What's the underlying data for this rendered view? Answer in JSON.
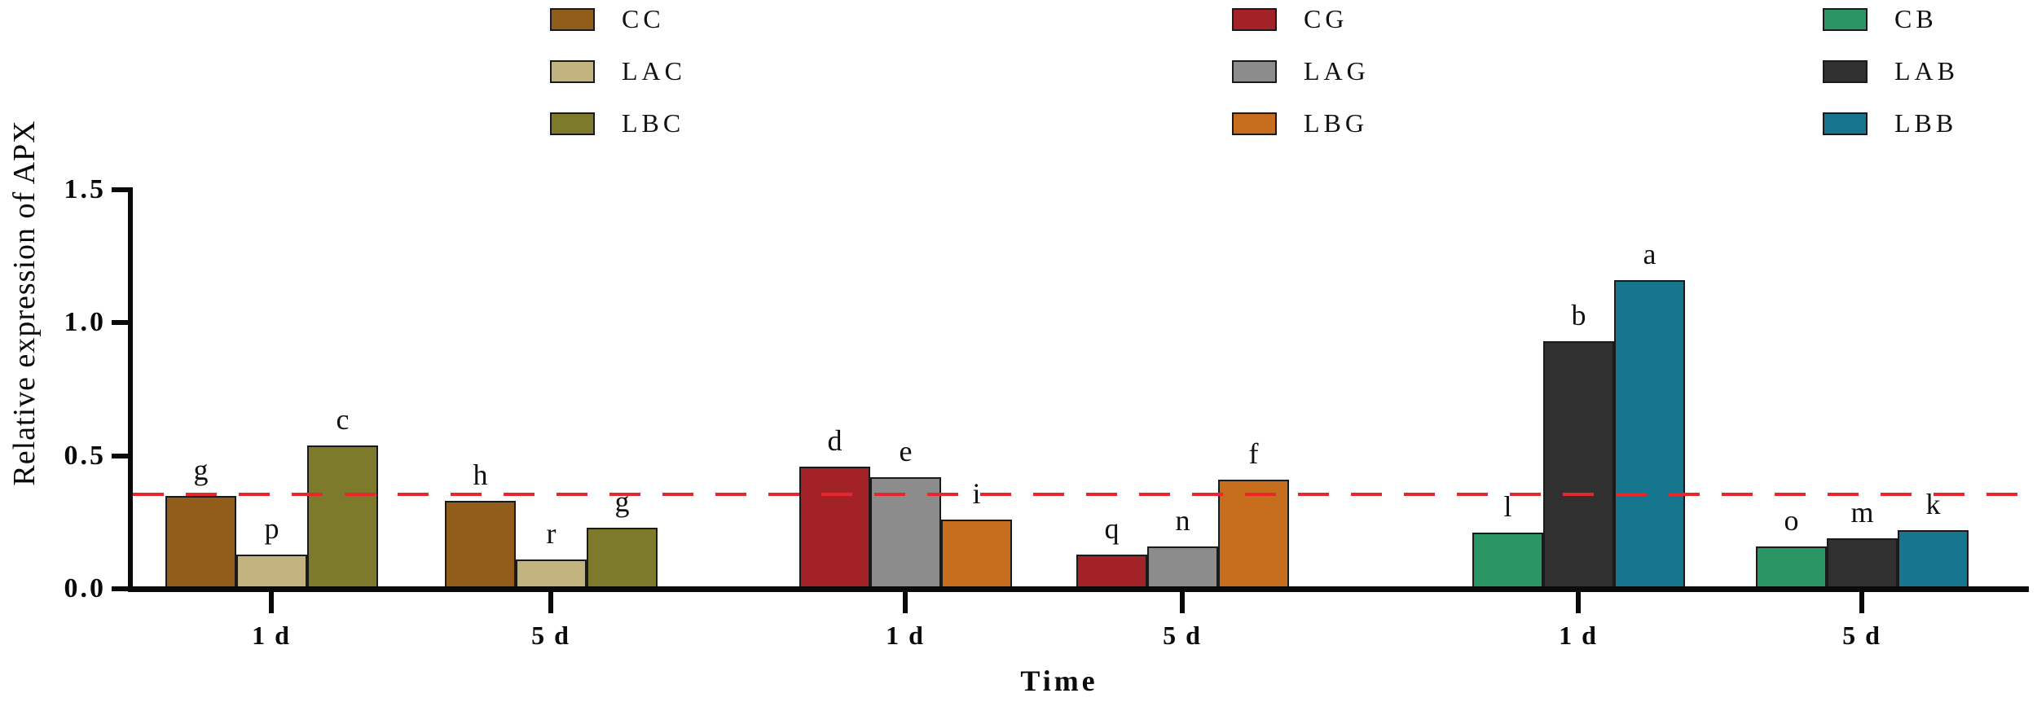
{
  "chart_data": {
    "type": "bar",
    "title": "",
    "ylabel": "Relative expression of APX",
    "xlabel": "Time",
    "ylim": [
      0,
      1.5
    ],
    "ytick_values": [
      0,
      0.5,
      1.0,
      1.5
    ],
    "ytick_labels": [
      "0.0",
      "0.5",
      "1.0",
      "1.5"
    ],
    "grid": "off",
    "legend_position": "top",
    "reference_line": {
      "value": 0.355,
      "color": "#e8262c",
      "style": "dashed"
    },
    "series": [
      {
        "name": "CC",
        "color": "#925c1a"
      },
      {
        "name": "LAC",
        "color": "#c3b37e"
      },
      {
        "name": "LBC",
        "color": "#7d7a2c"
      },
      {
        "name": "CG",
        "color": "#a22228"
      },
      {
        "name": "LAG",
        "color": "#8c8c8c"
      },
      {
        "name": "LBG",
        "color": "#c66e1e"
      },
      {
        "name": "CB",
        "color": "#2a9666"
      },
      {
        "name": "LAB",
        "color": "#303030"
      },
      {
        "name": "LBB",
        "color": "#17768f"
      }
    ],
    "legend_columns": [
      [
        "CC",
        "LAC",
        "LBC"
      ],
      [
        "CG",
        "LAG",
        "LBG"
      ],
      [
        "CB",
        "LAB",
        "LBB"
      ]
    ],
    "clusters": [
      {
        "time": "1 d",
        "bars": [
          {
            "series": "CC",
            "value": 0.35,
            "letter": "g"
          },
          {
            "series": "LAC",
            "value": 0.13,
            "letter": "p"
          },
          {
            "series": "LBC",
            "value": 0.54,
            "letter": "c"
          }
        ]
      },
      {
        "time": "5 d",
        "bars": [
          {
            "series": "CC",
            "value": 0.33,
            "letter": "h"
          },
          {
            "series": "LAC",
            "value": 0.11,
            "letter": "r"
          },
          {
            "series": "LBC",
            "value": 0.23,
            "letter": "g"
          }
        ]
      },
      {
        "time": "1 d",
        "bars": [
          {
            "series": "CG",
            "value": 0.46,
            "letter": "d"
          },
          {
            "series": "LAG",
            "value": 0.42,
            "letter": "e"
          },
          {
            "series": "LBG",
            "value": 0.26,
            "letter": "i"
          }
        ]
      },
      {
        "time": "5 d",
        "bars": [
          {
            "series": "CG",
            "value": 0.13,
            "letter": "q"
          },
          {
            "series": "LAG",
            "value": 0.16,
            "letter": "n"
          },
          {
            "series": "LBG",
            "value": 0.41,
            "letter": "f"
          }
        ]
      },
      {
        "time": "1 d",
        "bars": [
          {
            "series": "CB",
            "value": 0.21,
            "letter": "l"
          },
          {
            "series": "LAB",
            "value": 0.93,
            "letter": "b"
          },
          {
            "series": "LBB",
            "value": 1.16,
            "letter": "a"
          }
        ]
      },
      {
        "time": "5 d",
        "bars": [
          {
            "series": "CB",
            "value": 0.16,
            "letter": "o"
          },
          {
            "series": "LAB",
            "value": 0.19,
            "letter": "m"
          },
          {
            "series": "LBB",
            "value": 0.22,
            "letter": "k"
          }
        ]
      }
    ]
  }
}
